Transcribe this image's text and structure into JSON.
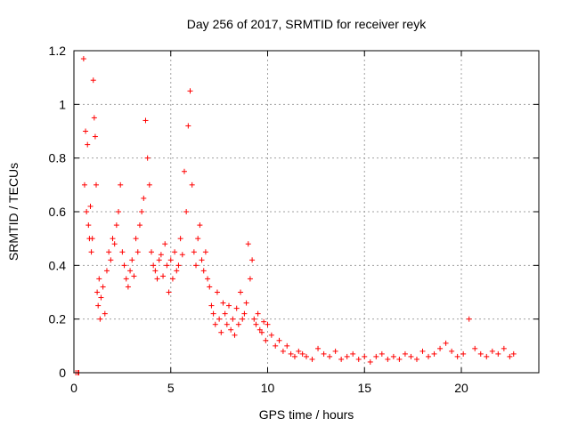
{
  "chart_data": {
    "type": "scatter",
    "title": "Day 256 of 2017, SRMTID for receiver reyk",
    "xlabel": "GPS time / hours",
    "ylabel": "SRMTID / TECUs",
    "xlim": [
      0,
      24
    ],
    "ylim": [
      0,
      1.2
    ],
    "x_ticks": [
      0,
      5,
      10,
      15,
      20
    ],
    "x_tick_labels": [
      "0",
      "5",
      "10",
      "15",
      "20"
    ],
    "y_ticks": [
      0,
      0.2,
      0.4,
      0.6,
      0.8,
      1.0,
      1.2
    ],
    "y_tick_labels": [
      "0",
      "0.2",
      "0.4",
      "0.6",
      "0.8",
      "1",
      "1.2"
    ],
    "grid": true,
    "marker": "plus",
    "series": [
      {
        "name": "SRMTID",
        "color": "#ff0000",
        "x": [
          0.1,
          0.2,
          0.25,
          0.5,
          0.55,
          0.6,
          0.65,
          0.7,
          0.75,
          0.8,
          0.85,
          0.9,
          0.95,
          1.0,
          1.05,
          1.1,
          1.15,
          1.2,
          1.25,
          1.3,
          1.35,
          1.4,
          1.5,
          1.6,
          1.7,
          1.8,
          1.9,
          2.0,
          2.1,
          2.2,
          2.3,
          2.4,
          2.5,
          2.6,
          2.7,
          2.8,
          2.9,
          3.0,
          3.1,
          3.2,
          3.3,
          3.4,
          3.5,
          3.6,
          3.7,
          3.8,
          3.9,
          4.0,
          4.1,
          4.2,
          4.3,
          4.4,
          4.5,
          4.6,
          4.7,
          4.8,
          4.9,
          5.0,
          5.1,
          5.2,
          5.3,
          5.4,
          5.5,
          5.6,
          5.7,
          5.8,
          5.9,
          6.0,
          6.1,
          6.2,
          6.3,
          6.4,
          6.5,
          6.6,
          6.7,
          6.8,
          6.9,
          7.0,
          7.1,
          7.2,
          7.3,
          7.4,
          7.5,
          7.6,
          7.7,
          7.8,
          7.9,
          8.0,
          8.1,
          8.2,
          8.3,
          8.4,
          8.5,
          8.6,
          8.7,
          8.8,
          8.9,
          9.0,
          9.1,
          9.2,
          9.3,
          9.4,
          9.5,
          9.6,
          9.7,
          9.8,
          9.9,
          10.0,
          10.2,
          10.4,
          10.6,
          10.8,
          11.0,
          11.2,
          11.4,
          11.6,
          11.8,
          12.0,
          12.3,
          12.6,
          12.9,
          13.2,
          13.5,
          13.8,
          14.1,
          14.4,
          14.7,
          15.0,
          15.3,
          15.6,
          15.9,
          16.2,
          16.5,
          16.8,
          17.1,
          17.4,
          17.7,
          18.0,
          18.3,
          18.6,
          18.9,
          19.2,
          19.5,
          19.8,
          20.1,
          20.4,
          20.7,
          21.0,
          21.3,
          21.6,
          21.9,
          22.2,
          22.5,
          22.7
        ],
        "y": [
          0.0,
          0.0,
          0.0,
          1.17,
          0.7,
          0.9,
          0.6,
          0.85,
          0.55,
          0.5,
          0.62,
          0.45,
          0.5,
          1.09,
          0.95,
          0.88,
          0.7,
          0.3,
          0.25,
          0.35,
          0.2,
          0.28,
          0.32,
          0.22,
          0.38,
          0.45,
          0.42,
          0.5,
          0.48,
          0.55,
          0.6,
          0.7,
          0.45,
          0.4,
          0.35,
          0.32,
          0.38,
          0.42,
          0.36,
          0.5,
          0.45,
          0.55,
          0.6,
          0.65,
          0.94,
          0.8,
          0.7,
          0.45,
          0.4,
          0.38,
          0.35,
          0.42,
          0.44,
          0.36,
          0.48,
          0.4,
          0.3,
          0.42,
          0.35,
          0.45,
          0.38,
          0.4,
          0.5,
          0.44,
          0.75,
          0.6,
          0.92,
          1.05,
          0.7,
          0.45,
          0.4,
          0.5,
          0.55,
          0.42,
          0.38,
          0.45,
          0.35,
          0.32,
          0.25,
          0.22,
          0.18,
          0.3,
          0.2,
          0.15,
          0.26,
          0.22,
          0.18,
          0.25,
          0.16,
          0.2,
          0.14,
          0.24,
          0.18,
          0.3,
          0.2,
          0.22,
          0.26,
          0.48,
          0.35,
          0.42,
          0.2,
          0.18,
          0.22,
          0.16,
          0.15,
          0.19,
          0.12,
          0.18,
          0.14,
          0.1,
          0.12,
          0.08,
          0.1,
          0.07,
          0.06,
          0.08,
          0.07,
          0.06,
          0.05,
          0.09,
          0.07,
          0.06,
          0.08,
          0.05,
          0.06,
          0.07,
          0.05,
          0.06,
          0.04,
          0.06,
          0.07,
          0.05,
          0.06,
          0.05,
          0.07,
          0.06,
          0.05,
          0.08,
          0.06,
          0.07,
          0.09,
          0.11,
          0.08,
          0.06,
          0.07,
          0.2,
          0.09,
          0.07,
          0.06,
          0.08,
          0.07,
          0.09,
          0.06,
          0.07
        ]
      }
    ]
  }
}
